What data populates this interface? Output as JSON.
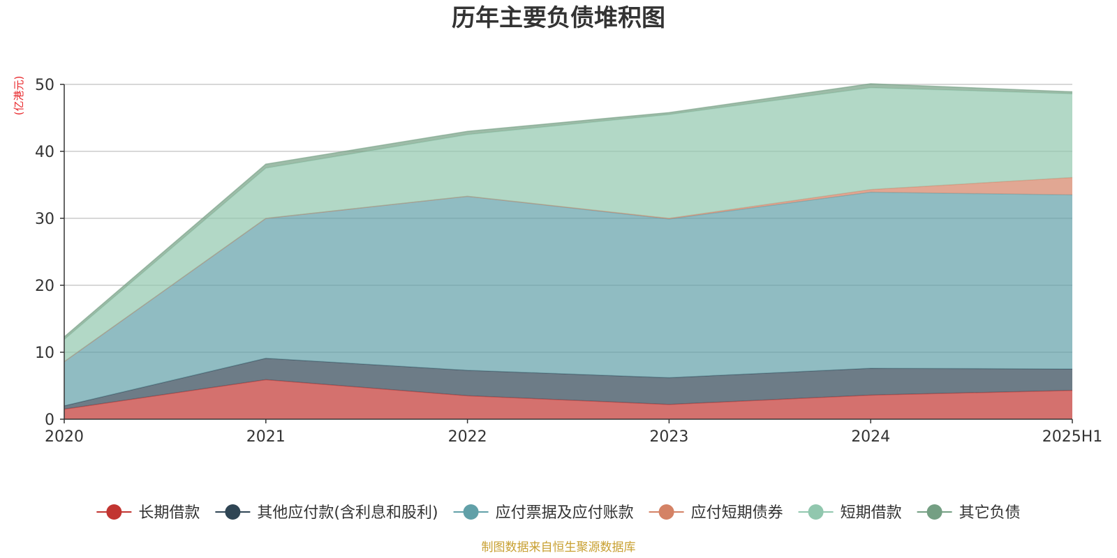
{
  "chart_data": {
    "type": "area",
    "stacked": true,
    "title": "历年主要负债堆积图",
    "unit_label": "(亿港元)",
    "categories": [
      "2020",
      "2021",
      "2022",
      "2023",
      "2024",
      "2025H1"
    ],
    "ylim": [
      0,
      50
    ],
    "yticks": [
      0,
      10,
      20,
      30,
      40,
      50
    ],
    "grid": true,
    "legend_position": "bottom",
    "series": [
      {
        "name": "长期借款",
        "color": "#c23531",
        "values": [
          1.5,
          5.9,
          3.5,
          2.2,
          3.6,
          4.3
        ]
      },
      {
        "name": "其他应付款(含利息和股利)",
        "color": "#2f4554",
        "values": [
          0.5,
          3.2,
          3.8,
          4.0,
          4.0,
          3.2
        ]
      },
      {
        "name": "应付票据及应付账款",
        "color": "#61a0a8",
        "values": [
          6.6,
          20.9,
          26.0,
          23.7,
          26.3,
          26.0
        ]
      },
      {
        "name": "应付短期债券",
        "color": "#d48265",
        "values": [
          0.0,
          0.0,
          0.0,
          0.1,
          0.4,
          2.6
        ]
      },
      {
        "name": "短期借款",
        "color": "#91c7ae",
        "values": [
          3.3,
          7.5,
          9.2,
          15.5,
          15.2,
          12.5
        ]
      },
      {
        "name": "其它负债",
        "color": "#749f83",
        "values": [
          0.4,
          0.6,
          0.5,
          0.3,
          0.6,
          0.3
        ]
      }
    ]
  },
  "footer": {
    "source": "制图数据来自恒生聚源数据库"
  }
}
